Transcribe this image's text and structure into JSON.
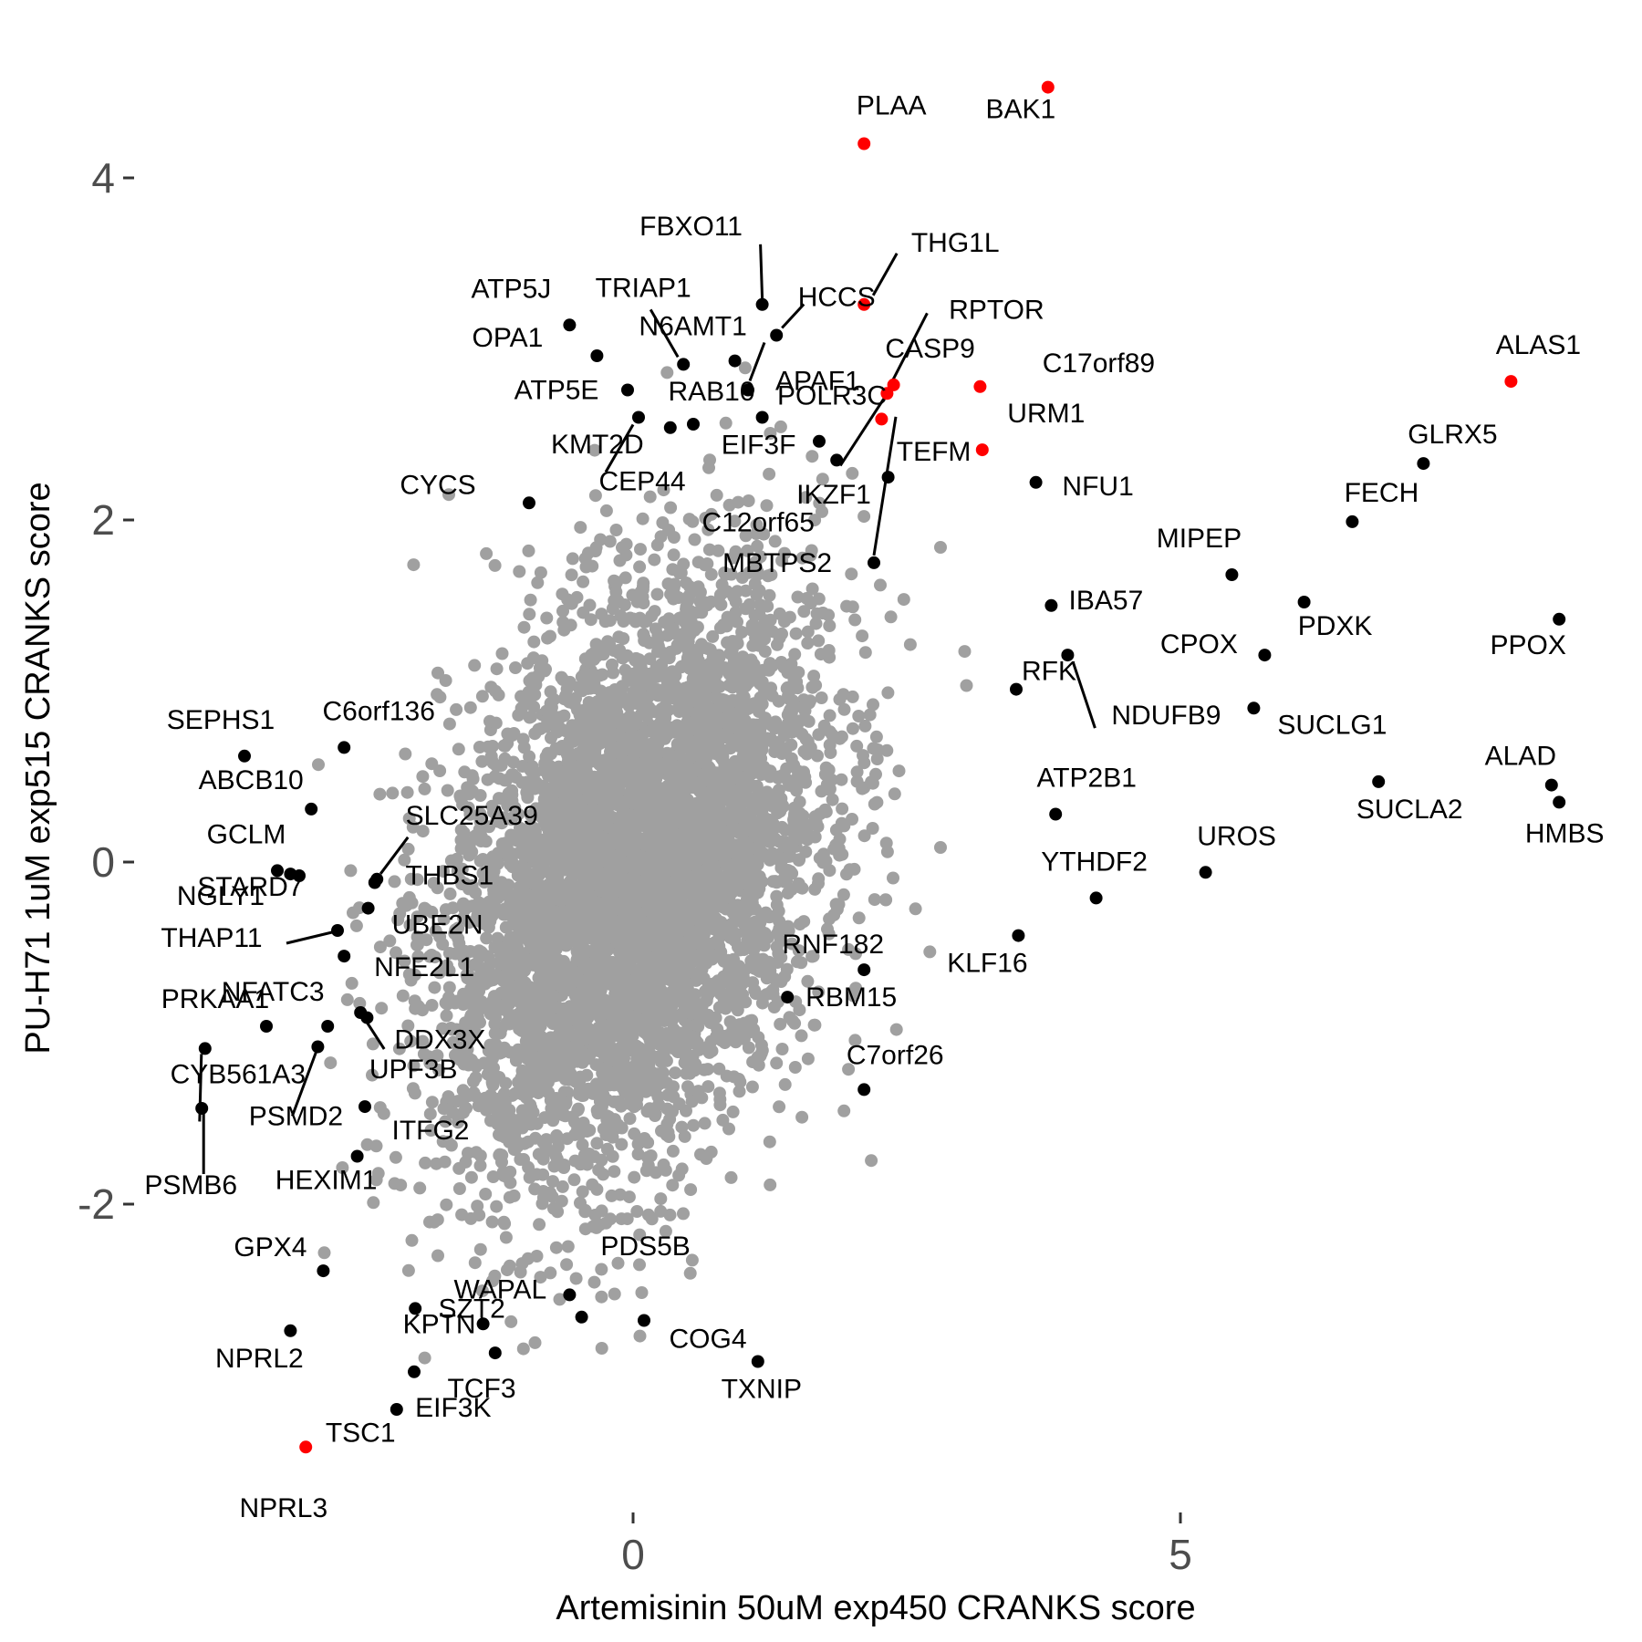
{
  "chart_data": {
    "type": "scatter",
    "xlabel": "Artemisinin 50uM exp450 CRANKS score",
    "ylabel": "PU-H71 1uM exp515 CRANKS score",
    "xlim": [
      -3.9,
      8.8
    ],
    "ylim": [
      -3.8,
      4.75
    ],
    "x_ticks": [
      0,
      5
    ],
    "y_ticks": [
      4,
      2,
      0,
      -2
    ],
    "grid": false,
    "legend": "none",
    "colors": {
      "highlight": "#ff0000",
      "labeled": "#000000",
      "background": "#a0a0a0"
    },
    "background_cloud": {
      "description_count": 5200,
      "center": [
        0.0,
        -0.1
      ],
      "spread": [
        0.85,
        0.85
      ],
      "correlation": 0.35
    },
    "points": [
      {
        "label": "PLAA",
        "x": 2.11,
        "y": 4.2,
        "group": "highlight"
      },
      {
        "label": "BAK1",
        "x": 3.79,
        "y": 4.53,
        "group": "highlight"
      },
      {
        "label": "THG1L",
        "x": 2.11,
        "y": 3.26,
        "group": "highlight"
      },
      {
        "label": "CASP9",
        "x": 2.38,
        "y": 2.79,
        "group": "highlight"
      },
      {
        "label": "RPTOR",
        "x": 2.32,
        "y": 2.74,
        "group": "highlight"
      },
      {
        "label": "C17orf89",
        "x": 3.17,
        "y": 2.78,
        "group": "highlight"
      },
      {
        "label": "APAF1",
        "x": 2.27,
        "y": 2.59,
        "group": "highlight"
      },
      {
        "label": "URM1",
        "x": 3.19,
        "y": 2.41,
        "group": "highlight"
      },
      {
        "label": "ALAS1",
        "x": 8.02,
        "y": 2.81,
        "group": "highlight"
      },
      {
        "label": "TSC1",
        "x": -2.99,
        "y": -3.42,
        "group": "highlight"
      },
      {
        "label": "FBXO11",
        "x": 1.18,
        "y": 3.26,
        "group": "labeled"
      },
      {
        "label": "HCCS",
        "x": 1.31,
        "y": 3.08,
        "group": "labeled"
      },
      {
        "label": "ATP5J",
        "x": -0.58,
        "y": 3.14,
        "group": "labeled"
      },
      {
        "label": "TRIAP1",
        "x": 0.46,
        "y": 2.91,
        "group": "labeled"
      },
      {
        "label": "N6AMT1",
        "x": 0.93,
        "y": 2.93,
        "group": "labeled"
      },
      {
        "label": "POLR3C",
        "x": 1.05,
        "y": 2.76,
        "group": "labeled"
      },
      {
        "label": "OPA1",
        "x": -0.33,
        "y": 2.96,
        "group": "labeled"
      },
      {
        "label": "ATP5E",
        "x": -0.05,
        "y": 2.76,
        "group": "labeled"
      },
      {
        "label": "RAB10",
        "x": 0.55,
        "y": 2.56,
        "group": "labeled"
      },
      {
        "label": "EIF3F",
        "x": 1.18,
        "y": 2.6,
        "group": "labeled"
      },
      {
        "label": "KMT2D",
        "x": 0.34,
        "y": 2.54,
        "group": "labeled"
      },
      {
        "label": "CEP44",
        "x": 0.05,
        "y": 2.6,
        "group": "labeled"
      },
      {
        "label": "IKZF1",
        "x": 1.7,
        "y": 2.46,
        "group": "labeled"
      },
      {
        "label": "C12orf65",
        "x": 1.86,
        "y": 2.35,
        "group": "labeled"
      },
      {
        "label": "TEFM",
        "x": 2.33,
        "y": 2.25,
        "group": "labeled"
      },
      {
        "label": "CYCS",
        "x": -0.95,
        "y": 2.1,
        "group": "labeled"
      },
      {
        "label": "MBTPS2",
        "x": 2.2,
        "y": 1.75,
        "group": "labeled"
      },
      {
        "label": "NFU1",
        "x": 3.68,
        "y": 2.22,
        "group": "labeled"
      },
      {
        "label": "GLRX5",
        "x": 7.22,
        "y": 2.33,
        "group": "labeled"
      },
      {
        "label": "FECH",
        "x": 6.57,
        "y": 1.99,
        "group": "labeled"
      },
      {
        "label": "MIPEP",
        "x": 5.47,
        "y": 1.68,
        "group": "labeled"
      },
      {
        "label": "PDXK",
        "x": 6.13,
        "y": 1.52,
        "group": "labeled"
      },
      {
        "label": "PPOX",
        "x": 8.46,
        "y": 1.42,
        "group": "labeled"
      },
      {
        "label": "IBA57",
        "x": 3.82,
        "y": 1.5,
        "group": "labeled"
      },
      {
        "label": "CPOX",
        "x": 5.77,
        "y": 1.21,
        "group": "labeled"
      },
      {
        "label": "RFK",
        "x": 3.5,
        "y": 1.01,
        "group": "labeled"
      },
      {
        "label": "NDUFB9",
        "x": 3.97,
        "y": 1.21,
        "group": "labeled"
      },
      {
        "label": "SUCLG1",
        "x": 5.67,
        "y": 0.9,
        "group": "labeled"
      },
      {
        "label": "ALAD",
        "x": 8.39,
        "y": 0.45,
        "group": "labeled"
      },
      {
        "label": "HMBS",
        "x": 8.46,
        "y": 0.35,
        "group": "labeled"
      },
      {
        "label": "SUCLA2",
        "x": 6.81,
        "y": 0.47,
        "group": "labeled"
      },
      {
        "label": "ATP2B1",
        "x": 3.86,
        "y": 0.28,
        "group": "labeled"
      },
      {
        "label": "UROS",
        "x": 5.23,
        "y": -0.06,
        "group": "labeled"
      },
      {
        "label": "YTHDF2",
        "x": 4.23,
        "y": -0.21,
        "group": "labeled"
      },
      {
        "label": "KLF16",
        "x": 3.52,
        "y": -0.43,
        "group": "labeled"
      },
      {
        "label": "SEPHS1",
        "x": -3.55,
        "y": 0.62,
        "group": "labeled"
      },
      {
        "label": "C6orf136",
        "x": -2.64,
        "y": 0.67,
        "group": "labeled"
      },
      {
        "label": "ABCB10",
        "x": -2.94,
        "y": 0.31,
        "group": "labeled"
      },
      {
        "label": "SLC25A39",
        "x": -2.34,
        "y": -0.1,
        "group": "labeled"
      },
      {
        "label": "GCLM",
        "x": -3.25,
        "y": -0.05,
        "group": "labeled"
      },
      {
        "label": "NGLY1",
        "x": -3.05,
        "y": -0.08,
        "group": "labeled"
      },
      {
        "label": "THBS1",
        "x": -2.36,
        "y": -0.12,
        "group": "labeled"
      },
      {
        "label": "STARD7",
        "x": -3.13,
        "y": -0.07,
        "group": "labeled"
      },
      {
        "label": "UBE2N",
        "x": -2.42,
        "y": -0.27,
        "group": "labeled"
      },
      {
        "label": "THAP11",
        "x": -2.7,
        "y": -0.4,
        "group": "labeled"
      },
      {
        "label": "NFE2L1",
        "x": -2.64,
        "y": -0.55,
        "group": "labeled"
      },
      {
        "label": "NFATC3",
        "x": -2.79,
        "y": -0.96,
        "group": "labeled"
      },
      {
        "label": "DDX3X",
        "x": -2.43,
        "y": -0.91,
        "group": "labeled"
      },
      {
        "label": "PRKAA1",
        "x": -3.35,
        "y": -0.96,
        "group": "labeled"
      },
      {
        "label": "CYB561A3",
        "x": -3.91,
        "y": -1.09,
        "group": "labeled"
      },
      {
        "label": "UPF3B",
        "x": -2.49,
        "y": -0.88,
        "group": "labeled"
      },
      {
        "label": "PSMD2",
        "x": -2.88,
        "y": -1.08,
        "group": "labeled"
      },
      {
        "label": "PSMB6",
        "x": -3.94,
        "y": -1.44,
        "group": "labeled"
      },
      {
        "label": "ITFG2",
        "x": -2.45,
        "y": -1.43,
        "group": "labeled"
      },
      {
        "label": "HEXIM1",
        "x": -2.52,
        "y": -1.72,
        "group": "labeled"
      },
      {
        "label": "RNF182",
        "x": 2.11,
        "y": -0.63,
        "group": "labeled"
      },
      {
        "label": "RBM15",
        "x": 1.41,
        "y": -0.79,
        "group": "labeled"
      },
      {
        "label": "C7orf26",
        "x": 2.11,
        "y": -1.33,
        "group": "labeled"
      },
      {
        "label": "GPX4",
        "x": -2.83,
        "y": -2.39,
        "group": "labeled"
      },
      {
        "label": "SZT2",
        "x": -1.99,
        "y": -2.61,
        "group": "labeled"
      },
      {
        "label": "WAPAL",
        "x": -0.58,
        "y": -2.53,
        "group": "labeled"
      },
      {
        "label": "COG4",
        "x": 0.1,
        "y": -2.68,
        "group": "labeled"
      },
      {
        "label": "PDS5B",
        "x": -0.47,
        "y": -2.66,
        "group": "labeled"
      },
      {
        "label": "NPRL2",
        "x": -3.13,
        "y": -2.74,
        "group": "labeled"
      },
      {
        "label": "KPTN",
        "x": -1.37,
        "y": -2.7,
        "group": "labeled"
      },
      {
        "label": "EIF3K",
        "x": -1.26,
        "y": -2.87,
        "group": "labeled"
      },
      {
        "label": "TCF3",
        "x": -2.0,
        "y": -2.98,
        "group": "labeled"
      },
      {
        "label": "TXNIP",
        "x": 1.14,
        "y": -2.92,
        "group": "labeled"
      },
      {
        "label": "NPRL3",
        "x": -2.16,
        "y": -3.2,
        "group": "labeled"
      }
    ]
  }
}
